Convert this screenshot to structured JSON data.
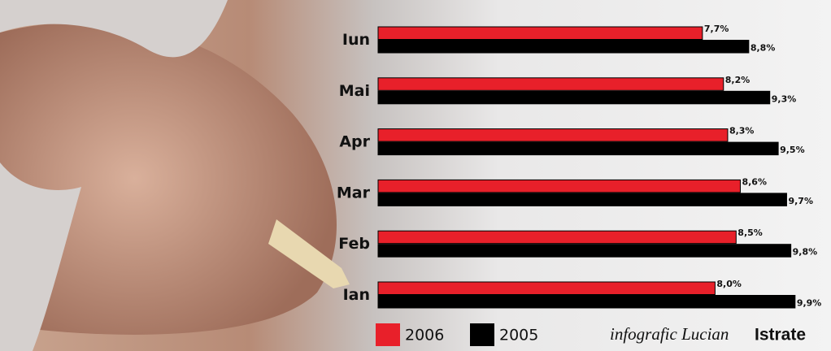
{
  "chart_data": {
    "type": "bar",
    "orientation": "horizontal",
    "categories": [
      "Iun",
      "Mai",
      "Apr",
      "Mar",
      "Feb",
      "Ian"
    ],
    "series": [
      {
        "name": "2006",
        "color": "#e8202a",
        "values": [
          7.7,
          8.2,
          8.3,
          8.6,
          8.5,
          8.0
        ],
        "value_labels": [
          "7,7%",
          "8,2%",
          "8,3%",
          "8,6%",
          "8,5%",
          "8,0%"
        ]
      },
      {
        "name": "2005",
        "color": "#000000",
        "values": [
          8.8,
          9.3,
          9.5,
          9.7,
          9.8,
          9.9
        ],
        "value_labels": [
          "8,8%",
          "9,3%",
          "9,5%",
          "9,7%",
          "9,8%",
          "9,9%"
        ]
      }
    ],
    "credit": {
      "text": "infografic Lucian",
      "author": "Istrate"
    }
  }
}
